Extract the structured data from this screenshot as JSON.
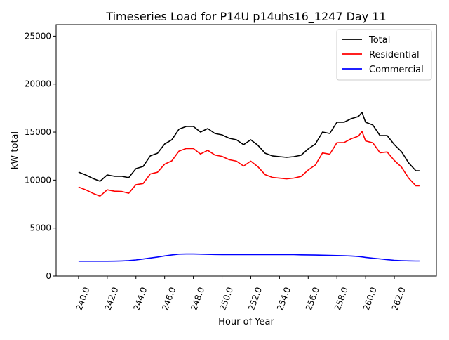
{
  "chart_data": {
    "type": "line",
    "title": "Timeseries Load for P14U p14uhs16_1247  Day 11",
    "xlabel": "Hour of Year",
    "ylabel": "kW total",
    "xlim": [
      238.44,
      264.93
    ],
    "ylim": [
      0,
      26200
    ],
    "xticks": [
      240,
      242,
      244,
      246,
      248,
      250,
      252,
      254,
      256,
      258,
      260,
      262
    ],
    "xtick_labels": [
      "240.0",
      "242.0",
      "244.0",
      "246.0",
      "248.0",
      "250.0",
      "252.0",
      "254.0",
      "256.0",
      "258.0",
      "260.0",
      "262.0"
    ],
    "yticks": [
      0,
      5000,
      10000,
      15000,
      20000,
      25000
    ],
    "ytick_labels": [
      "0",
      "5000",
      "10000",
      "15000",
      "20000",
      "25000"
    ],
    "legend_position": "top-right",
    "grid": false,
    "x": [
      240,
      240.5,
      241,
      241.5,
      242,
      242.5,
      243,
      243.5,
      244,
      244.5,
      245,
      245.5,
      246,
      246.5,
      247,
      247.5,
      248,
      248.5,
      249,
      249.5,
      250,
      250.5,
      251,
      251.5,
      252,
      252.5,
      253,
      253.5,
      254,
      254.5,
      255,
      255.5,
      256,
      256.5,
      257,
      257.5,
      258,
      258.5,
      259,
      259.5,
      259.75,
      260,
      260.5,
      261,
      261.5,
      262,
      262.5,
      263,
      263.5,
      263.75
    ],
    "series": [
      {
        "name": "Total",
        "color": "#000000",
        "values": [
          10830,
          10540,
          10170,
          9880,
          10540,
          10400,
          10400,
          10250,
          11200,
          11420,
          12520,
          12800,
          13760,
          14200,
          15300,
          15590,
          15590,
          15000,
          15370,
          14860,
          14710,
          14350,
          14200,
          13690,
          14200,
          13620,
          12800,
          12520,
          12440,
          12370,
          12440,
          12590,
          13250,
          13760,
          15000,
          14860,
          16030,
          16030,
          16400,
          16620,
          17060,
          16030,
          15740,
          14640,
          14640,
          13690,
          12960,
          11790,
          10980,
          10980
        ]
      },
      {
        "name": "Residential",
        "color": "#ff0000",
        "values": [
          9280,
          8990,
          8620,
          8330,
          8990,
          8840,
          8820,
          8630,
          9520,
          9640,
          10640,
          10820,
          11660,
          12000,
          13020,
          13290,
          13290,
          12720,
          13110,
          12610,
          12470,
          12120,
          11970,
          11460,
          11970,
          11390,
          10570,
          10280,
          10200,
          10130,
          10210,
          10380,
          11050,
          11570,
          12830,
          12700,
          13890,
          13910,
          14310,
          14580,
          15060,
          14080,
          13880,
          12850,
          12930,
          12040,
          11350,
          10200,
          9410,
          9410
        ]
      },
      {
        "name": "Commercial",
        "color": "#0000ff",
        "values": [
          1550,
          1550,
          1550,
          1550,
          1550,
          1560,
          1580,
          1620,
          1680,
          1780,
          1880,
          1980,
          2100,
          2200,
          2280,
          2300,
          2300,
          2280,
          2260,
          2250,
          2240,
          2230,
          2230,
          2230,
          2230,
          2230,
          2230,
          2240,
          2240,
          2240,
          2230,
          2210,
          2200,
          2190,
          2170,
          2160,
          2140,
          2120,
          2090,
          2040,
          2000,
          1950,
          1860,
          1790,
          1710,
          1650,
          1610,
          1590,
          1570,
          1570
        ]
      }
    ]
  }
}
